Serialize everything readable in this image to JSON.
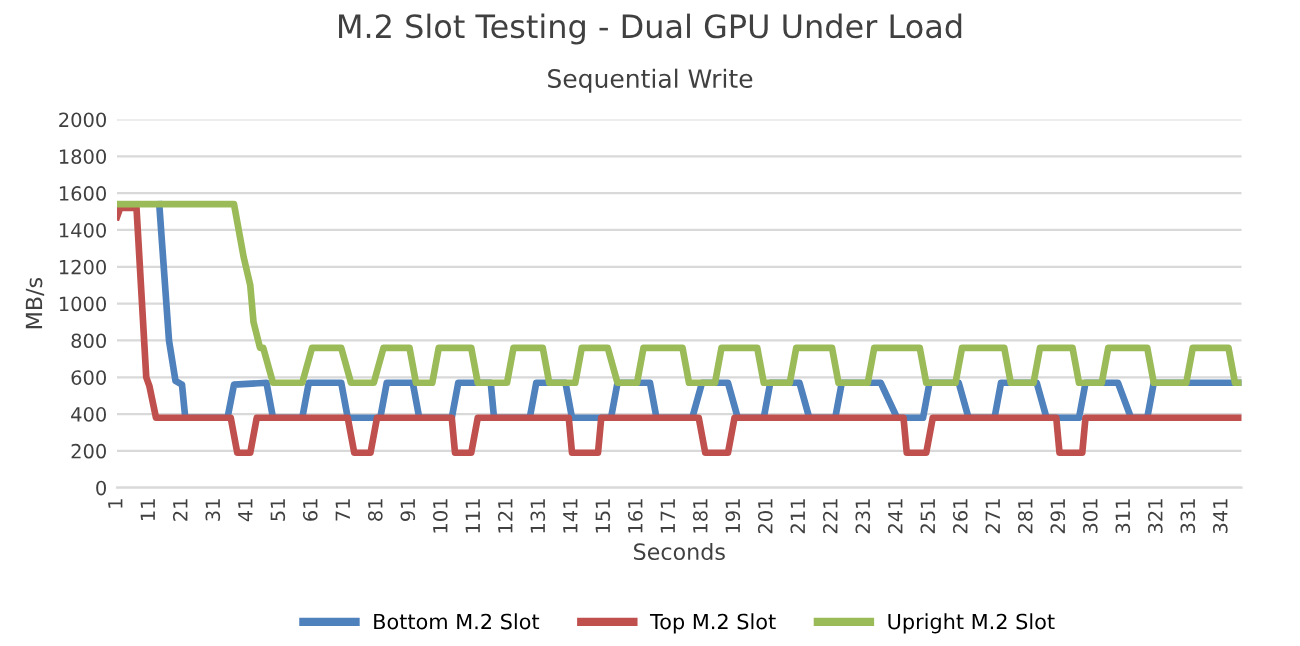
{
  "chart_data": {
    "type": "line",
    "title": "M.2 Slot Testing - Dual GPU Under Load",
    "subtitle": "Sequential Write",
    "xlabel": "Seconds",
    "ylabel": "MB/s",
    "series": [
      {
        "name": "Bottom M.2 Slot",
        "color": "#4f81bd",
        "x": [
          14,
          17,
          19,
          21,
          22,
          35,
          37,
          47,
          49,
          58,
          60,
          70,
          72,
          82,
          84,
          92,
          94,
          104,
          106,
          116,
          117,
          128,
          130,
          139,
          141,
          153,
          155,
          165,
          167,
          178,
          181,
          189,
          192,
          200,
          202,
          211,
          214,
          222,
          224,
          236,
          241,
          249,
          251,
          260,
          263,
          271,
          273,
          284,
          287,
          297,
          299,
          309,
          313,
          318,
          320,
          347
        ],
        "values": [
          1540,
          800,
          580,
          560,
          380,
          380,
          560,
          570,
          380,
          380,
          570,
          570,
          380,
          380,
          570,
          570,
          380,
          380,
          570,
          570,
          380,
          380,
          570,
          570,
          380,
          380,
          570,
          570,
          380,
          380,
          570,
          570,
          380,
          380,
          570,
          570,
          380,
          380,
          570,
          570,
          380,
          380,
          570,
          570,
          380,
          380,
          570,
          570,
          380,
          380,
          570,
          570,
          380,
          380,
          570,
          570
        ]
      },
      {
        "name": "Top M.2 Slot",
        "color": "#c0504d",
        "x": [
          1,
          2,
          7,
          10,
          11,
          13,
          36,
          38,
          42,
          44,
          72,
          74,
          79,
          81,
          104,
          105,
          110,
          112,
          140,
          141,
          149,
          150,
          180,
          182,
          189,
          191,
          243,
          244,
          250,
          252,
          290,
          291,
          298,
          299,
          347
        ],
        "values": [
          1470,
          1520,
          1520,
          600,
          550,
          380,
          380,
          190,
          190,
          380,
          380,
          190,
          190,
          380,
          380,
          190,
          190,
          380,
          380,
          190,
          190,
          380,
          380,
          190,
          190,
          380,
          380,
          190,
          190,
          380,
          380,
          190,
          190,
          380,
          380
        ]
      },
      {
        "name": "Upright M.2 Slot",
        "color": "#9bbb59",
        "x": [
          1,
          37,
          40,
          42,
          43,
          45,
          46,
          49,
          58,
          61,
          70,
          73,
          80,
          83,
          91,
          93,
          98,
          100,
          110,
          112,
          121,
          123,
          132,
          134,
          142,
          144,
          152,
          155,
          161,
          163,
          175,
          177,
          185,
          187,
          198,
          200,
          208,
          210,
          221,
          223,
          232,
          234,
          248,
          250,
          259,
          261,
          274,
          276,
          283,
          285,
          295,
          297,
          304,
          306,
          318,
          320,
          330,
          332,
          343,
          345,
          347
        ],
        "values": [
          1540,
          1540,
          1250,
          1100,
          900,
          760,
          760,
          570,
          570,
          760,
          760,
          570,
          570,
          760,
          760,
          570,
          570,
          760,
          760,
          570,
          570,
          760,
          760,
          570,
          570,
          760,
          760,
          570,
          570,
          760,
          760,
          570,
          570,
          760,
          760,
          570,
          570,
          760,
          760,
          570,
          570,
          760,
          760,
          570,
          570,
          760,
          760,
          570,
          570,
          760,
          760,
          570,
          570,
          760,
          760,
          570,
          570,
          760,
          760,
          570,
          570
        ]
      }
    ],
    "xlim": [
      1,
      347
    ],
    "xticks": [
      1,
      11,
      21,
      31,
      41,
      51,
      61,
      71,
      81,
      91,
      101,
      111,
      121,
      131,
      141,
      151,
      161,
      171,
      181,
      191,
      201,
      211,
      221,
      231,
      241,
      251,
      261,
      271,
      281,
      291,
      301,
      311,
      321,
      331,
      341
    ],
    "ylim": [
      0,
      2000
    ],
    "yticks": [
      0,
      200,
      400,
      600,
      800,
      1000,
      1200,
      1400,
      1600,
      1800,
      2000
    ],
    "grid": "y",
    "legend": "bottom",
    "marker": "none",
    "line_style": "solid"
  }
}
